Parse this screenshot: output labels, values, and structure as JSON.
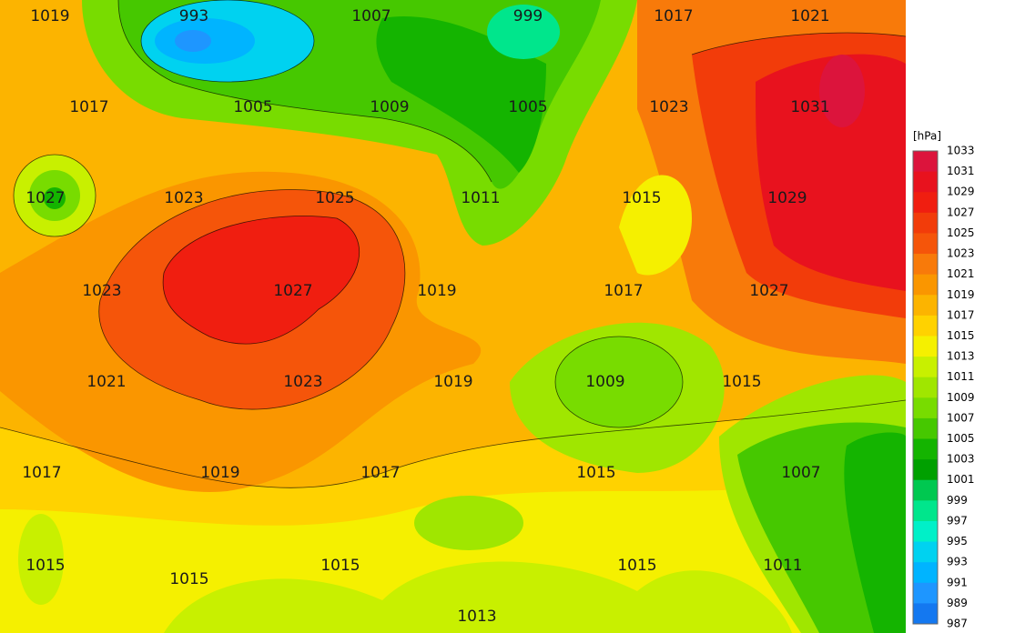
{
  "map": {
    "labels": [
      1019,
      993,
      1007,
      999,
      1017,
      1021,
      1017,
      1005,
      1009,
      1005,
      1023,
      1031,
      1027,
      1023,
      1025,
      1011,
      1015,
      1029,
      1023,
      1027,
      1019,
      1017,
      1027,
      1021,
      1023,
      1019,
      1009,
      1015,
      1017,
      1019,
      1017,
      1015,
      1007,
      1015,
      1015,
      1015,
      1015,
      1011,
      1013
    ]
  },
  "legend": {
    "unit": "[hPa]",
    "ticks": [
      1033,
      1031,
      1029,
      1027,
      1025,
      1023,
      1021,
      1019,
      1017,
      1015,
      1013,
      1011,
      1009,
      1007,
      1005,
      1003,
      1001,
      999,
      997,
      995,
      993,
      991,
      989,
      987
    ],
    "colors": [
      "#dc143c",
      "#e8121e",
      "#f01e10",
      "#f23c0a",
      "#f5550a",
      "#f87a0a",
      "#fa9600",
      "#fcb400",
      "#ffd200",
      "#f5f000",
      "#c8f000",
      "#a0e600",
      "#78dc00",
      "#46c800",
      "#14b400",
      "#00a000",
      "#00c850",
      "#00e68c",
      "#00f0c8",
      "#00d2f0",
      "#00b4ff",
      "#1e96ff",
      "#1478f0"
    ]
  }
}
